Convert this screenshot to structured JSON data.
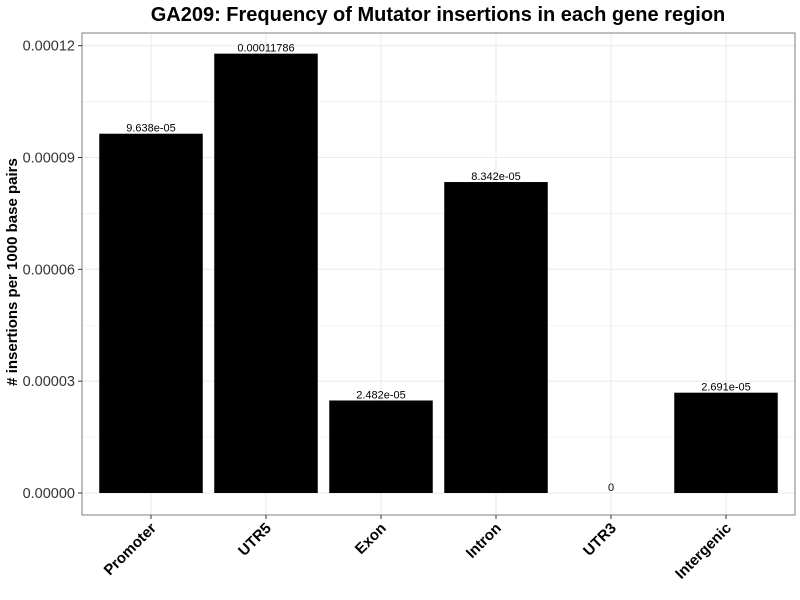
{
  "chart_data": {
    "type": "bar",
    "title": "GA209: Frequency of Mutator insertions in each gene region",
    "xlabel": "",
    "ylabel": "# insertions per 1000 base pairs",
    "categories": [
      "Promoter",
      "UTR5",
      "Exon",
      "Intron",
      "UTR3",
      "Intergenic"
    ],
    "values": [
      9.638e-05,
      0.00011786,
      2.482e-05,
      8.342e-05,
      0,
      2.691e-05
    ],
    "data_labels": [
      "9.638e-05",
      "0.00011786",
      "2.482e-05",
      "8.342e-05",
      "0",
      "2.691e-05"
    ],
    "yticks": [
      0,
      3e-05,
      6e-05,
      9e-05,
      0.00012
    ],
    "ytick_labels": [
      "0.00000",
      "0.00003",
      "0.00006",
      "0.00009",
      "0.00012"
    ],
    "ylim": [
      -5.9e-06,
      0.0001234
    ],
    "grid": true,
    "bar_color": "#000000",
    "grid_color": "#ebebeb",
    "panel_border_color": "#7f7f7f"
  }
}
